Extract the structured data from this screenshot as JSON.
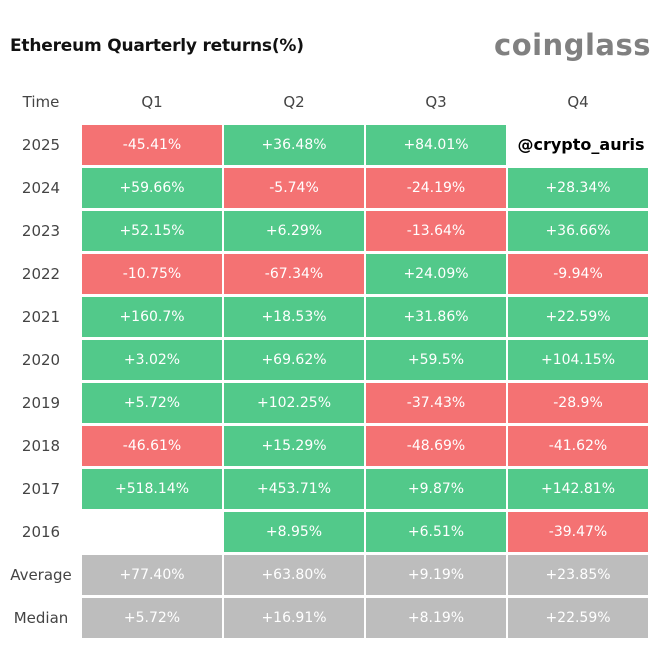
{
  "title": "Ethereum Quarterly returns(%)",
  "brand": "coinglass",
  "watermark": "@crypto_auris",
  "colors": {
    "positive": "#52c98a",
    "negative": "#f47273",
    "summary": "#bdbdbd"
  },
  "chart_data": {
    "type": "table",
    "title": "Ethereum Quarterly returns(%)",
    "columns": [
      "Time",
      "Q1",
      "Q2",
      "Q3",
      "Q4"
    ],
    "rows": [
      {
        "label": "2025",
        "values": [
          "-45.41%",
          "+36.48%",
          "+84.01%",
          ""
        ],
        "signs": [
          "neg",
          "pos",
          "pos",
          "none"
        ]
      },
      {
        "label": "2024",
        "values": [
          "+59.66%",
          "-5.74%",
          "-24.19%",
          "+28.34%"
        ],
        "signs": [
          "pos",
          "neg",
          "neg",
          "pos"
        ]
      },
      {
        "label": "2023",
        "values": [
          "+52.15%",
          "+6.29%",
          "-13.64%",
          "+36.66%"
        ],
        "signs": [
          "pos",
          "pos",
          "neg",
          "pos"
        ]
      },
      {
        "label": "2022",
        "values": [
          "-10.75%",
          "-67.34%",
          "+24.09%",
          "-9.94%"
        ],
        "signs": [
          "neg",
          "neg",
          "pos",
          "neg"
        ]
      },
      {
        "label": "2021",
        "values": [
          "+160.7%",
          "+18.53%",
          "+31.86%",
          "+22.59%"
        ],
        "signs": [
          "pos",
          "pos",
          "pos",
          "pos"
        ]
      },
      {
        "label": "2020",
        "values": [
          "+3.02%",
          "+69.62%",
          "+59.5%",
          "+104.15%"
        ],
        "signs": [
          "pos",
          "pos",
          "pos",
          "pos"
        ]
      },
      {
        "label": "2019",
        "values": [
          "+5.72%",
          "+102.25%",
          "-37.43%",
          "-28.9%"
        ],
        "signs": [
          "pos",
          "pos",
          "neg",
          "neg"
        ]
      },
      {
        "label": "2018",
        "values": [
          "-46.61%",
          "+15.29%",
          "-48.69%",
          "-41.62%"
        ],
        "signs": [
          "neg",
          "pos",
          "neg",
          "neg"
        ]
      },
      {
        "label": "2017",
        "values": [
          "+518.14%",
          "+453.71%",
          "+9.87%",
          "+142.81%"
        ],
        "signs": [
          "pos",
          "pos",
          "pos",
          "pos"
        ]
      },
      {
        "label": "2016",
        "values": [
          "",
          "+8.95%",
          "+6.51%",
          "-39.47%"
        ],
        "signs": [
          "none",
          "pos",
          "pos",
          "neg"
        ]
      },
      {
        "label": "Average",
        "values": [
          "+77.40%",
          "+63.80%",
          "+9.19%",
          "+23.85%"
        ],
        "signs": [
          "sum",
          "sum",
          "sum",
          "sum"
        ]
      },
      {
        "label": "Median",
        "values": [
          "+5.72%",
          "+16.91%",
          "+8.19%",
          "+22.59%"
        ],
        "signs": [
          "sum",
          "sum",
          "sum",
          "sum"
        ]
      }
    ]
  }
}
